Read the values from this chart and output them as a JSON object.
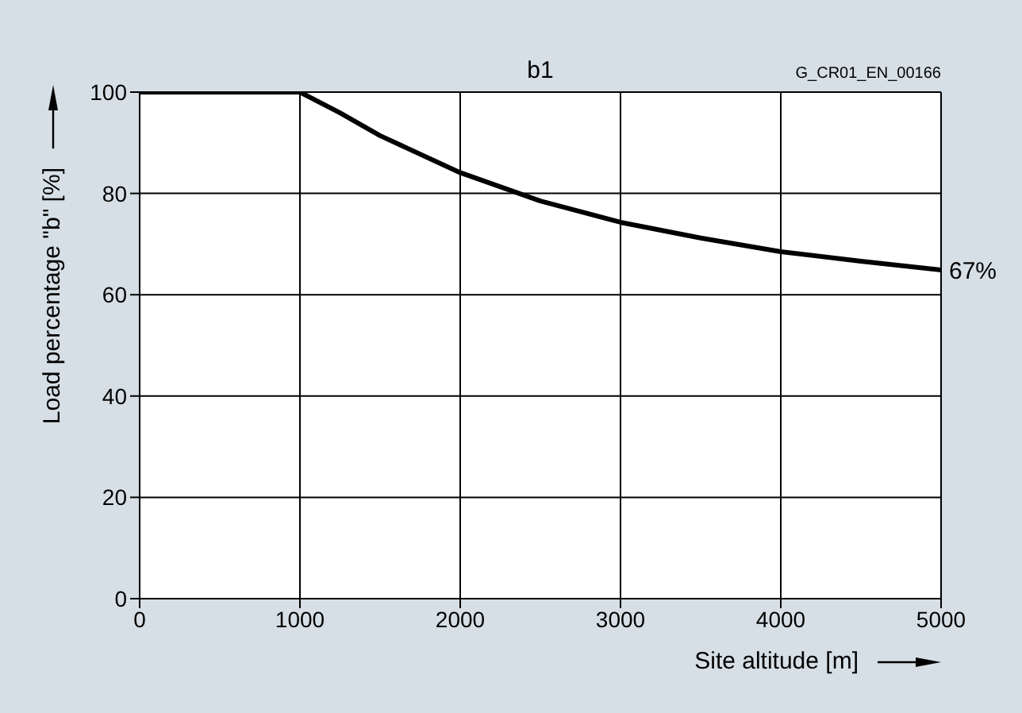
{
  "chart_data": {
    "type": "line",
    "title": "b1",
    "xlabel": "Site altitude [m]",
    "ylabel": "Load percentage \"b\" [%]",
    "x": [
      0,
      1000,
      1250,
      1500,
      2000,
      2500,
      3000,
      3500,
      4000,
      4500,
      5000
    ],
    "series": [
      {
        "color": "#000000",
        "values": [
          100,
          100,
          95.9,
          91.4,
          84.1,
          78.5,
          74.3,
          71.2,
          68.5,
          66.6,
          64.9
        ]
      }
    ],
    "xlim": [
      0,
      5000
    ],
    "xticks": [
      0,
      1000,
      2000,
      3000,
      4000,
      5000
    ],
    "ylim": [
      0,
      100
    ],
    "yticks": [
      0,
      20,
      40,
      60,
      80,
      100
    ],
    "grid": true,
    "marker": "none",
    "line_style": "solid",
    "annotations": [
      "G_CR01_EN_00166",
      {
        "text": "67%",
        "x": 5000,
        "y": 64.9
      }
    ]
  }
}
